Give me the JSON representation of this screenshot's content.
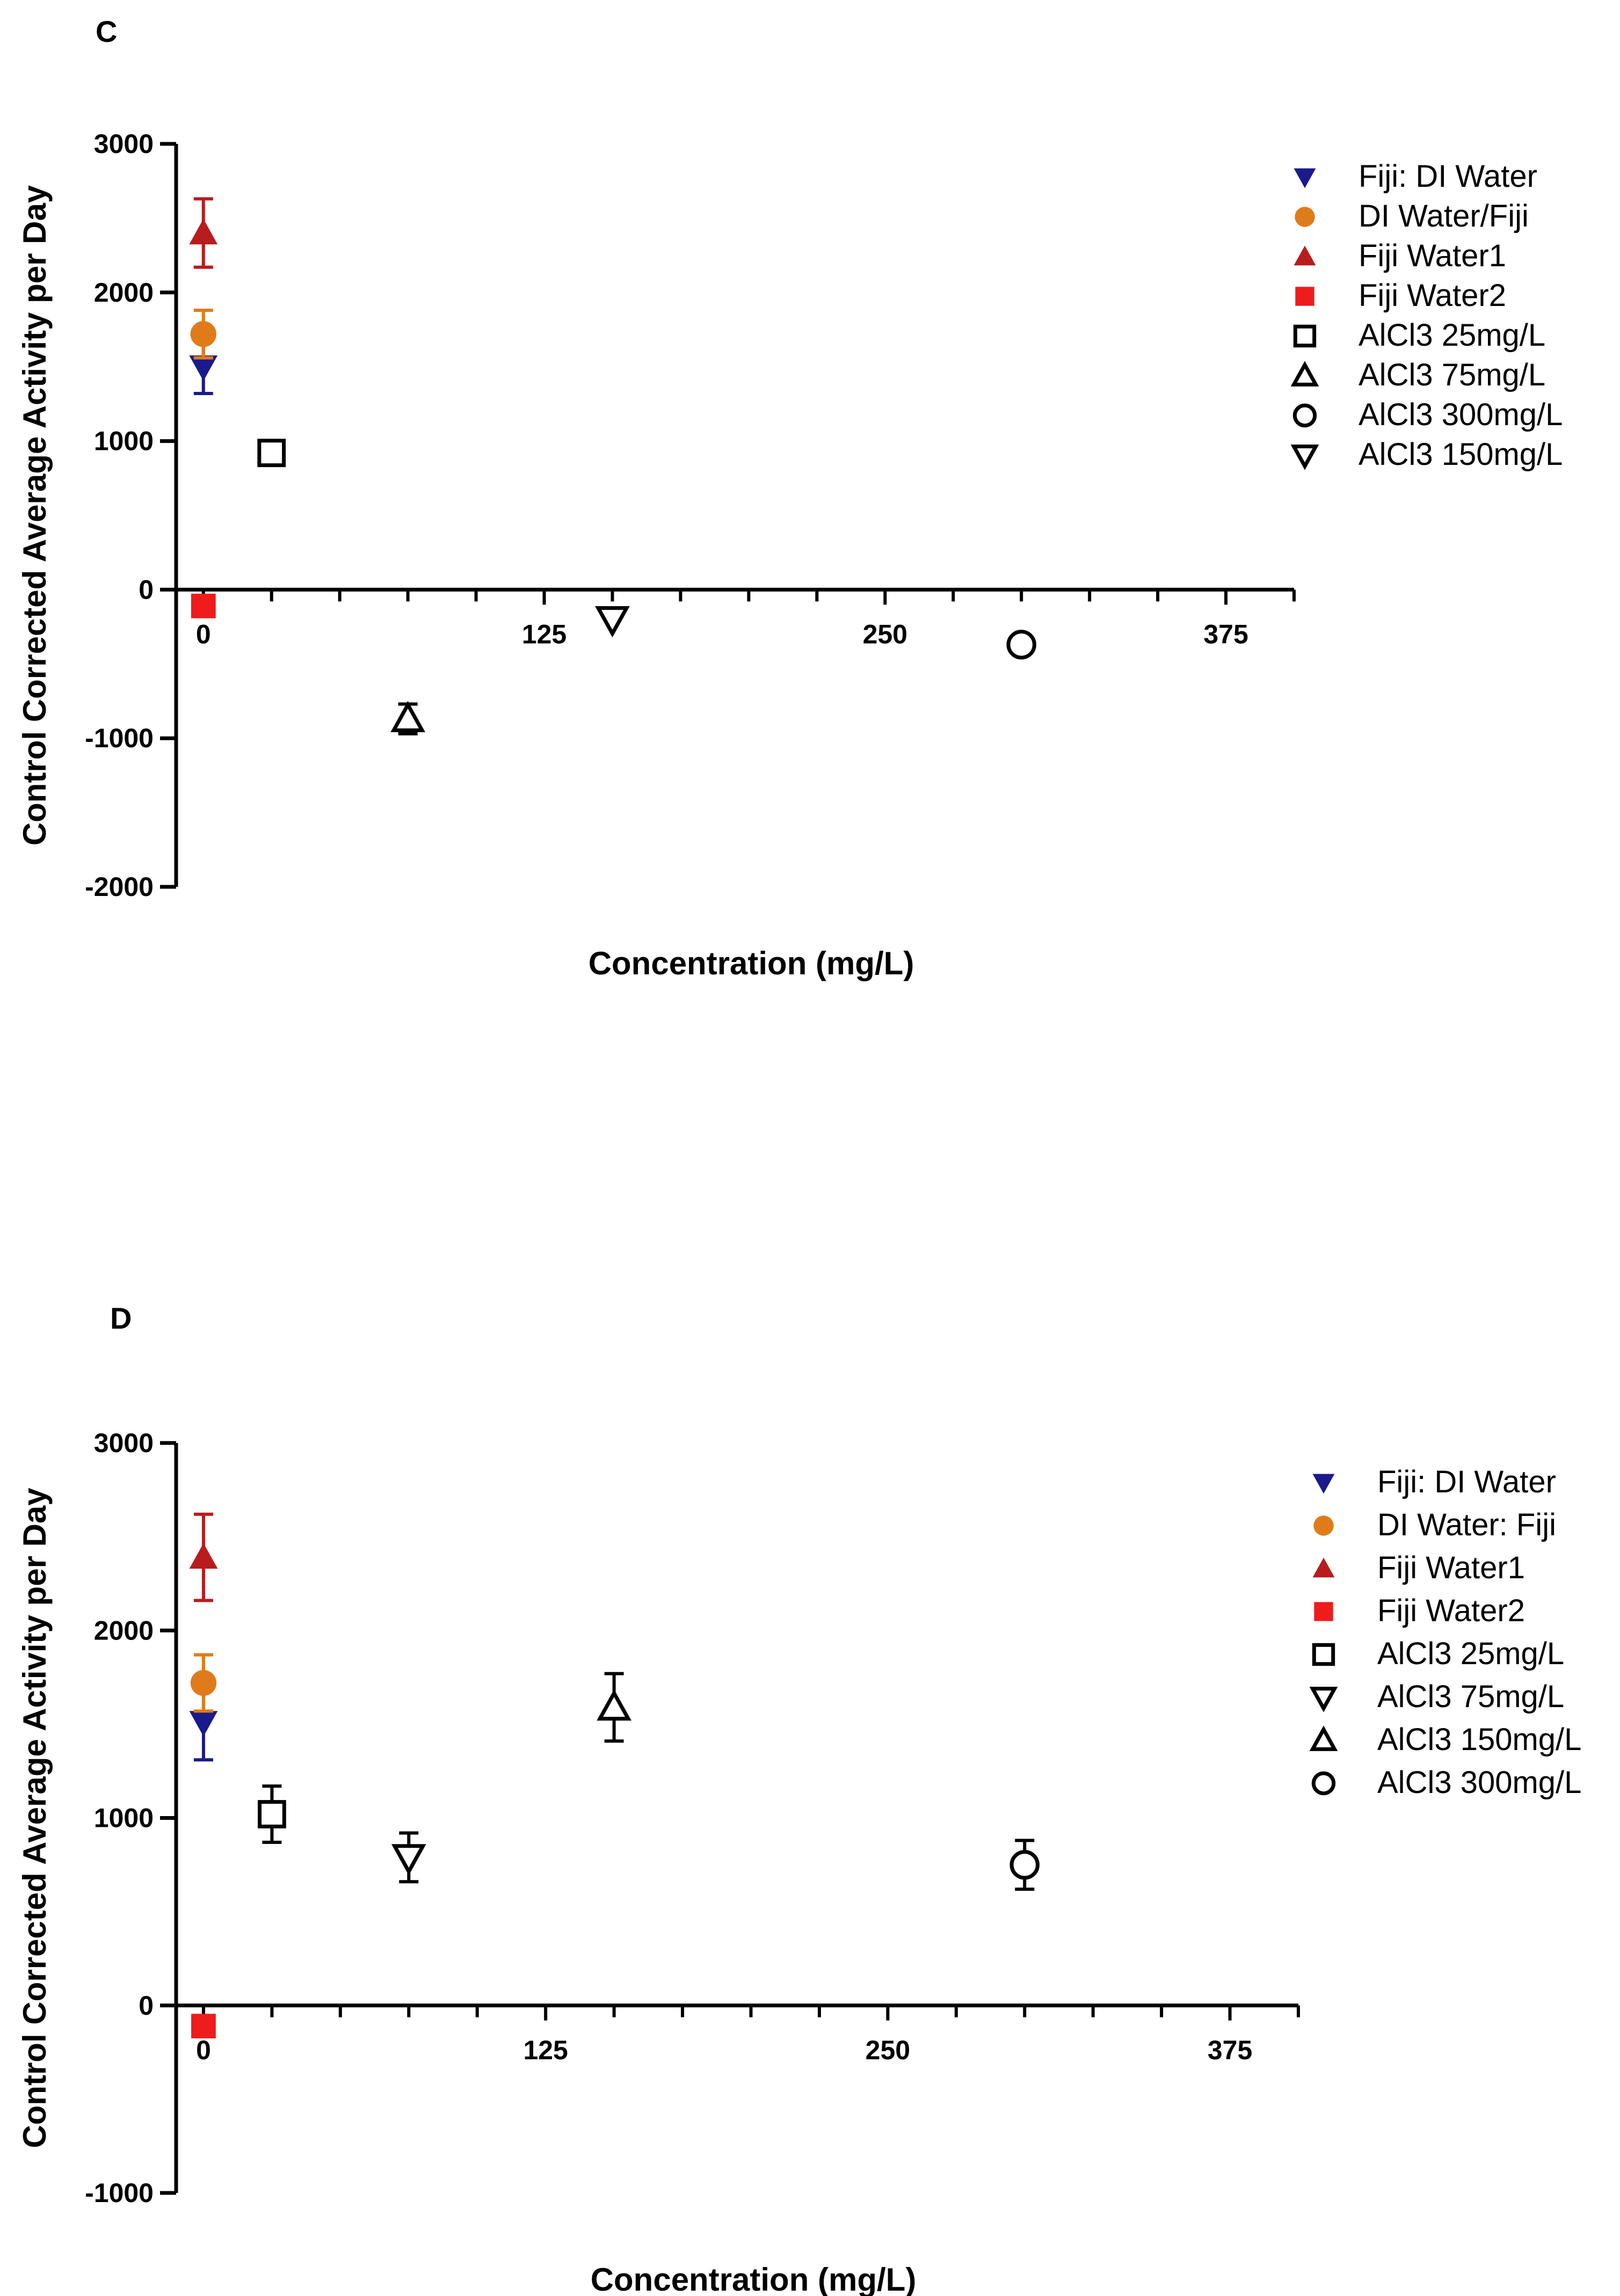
{
  "chart_data": [
    {
      "panel": "C",
      "type": "scatter",
      "xlabel": "Concentration (mg/L)",
      "ylabel": "Control Corrected Average Activity per Day",
      "xlim": [
        -10,
        400
      ],
      "ylim": [
        -2000,
        3000
      ],
      "x_ticks": [
        "0",
        "125",
        "250",
        "375"
      ],
      "y_ticks": [
        "3000",
        "2000",
        "1000",
        "0",
        "-1000",
        "-2000"
      ],
      "legend_position": "right",
      "series": [
        {
          "name": "Fiji: DI Water",
          "marker": "triangle-down",
          "filled": true,
          "color": "#1a1a8c",
          "x": 0,
          "y": 1500,
          "err": 180
        },
        {
          "name": "DI Water/Fiji",
          "marker": "circle",
          "filled": true,
          "color": "#e07b1a",
          "x": 0,
          "y": 1720,
          "err": 160
        },
        {
          "name": "Fiji Water1",
          "marker": "triangle-up",
          "filled": true,
          "color": "#b81c1c",
          "x": 0,
          "y": 2400,
          "err": 230
        },
        {
          "name": "Fiji Water2",
          "marker": "square",
          "filled": true,
          "color": "#ee1c1c",
          "x": 0,
          "y": -110,
          "err": 0
        },
        {
          "name": "AlCl3 25mg/L",
          "marker": "square",
          "filled": false,
          "color": "#000000",
          "x": 25,
          "y": 920,
          "err": 70
        },
        {
          "name": "AlCl3 75mg/L",
          "marker": "triangle-up",
          "filled": false,
          "color": "#000000",
          "x": 75,
          "y": -870,
          "err": 100
        },
        {
          "name": "AlCl3 300mg/L",
          "marker": "circle",
          "filled": false,
          "color": "#000000",
          "x": 300,
          "y": -370,
          "err": 0
        },
        {
          "name": "AlCl3 150mg/L",
          "marker": "triangle-down",
          "filled": false,
          "color": "#000000",
          "x": 150,
          "y": -200,
          "err": 0
        }
      ]
    },
    {
      "panel": "D",
      "type": "scatter",
      "xlabel": "Concentration (mg/L)",
      "ylabel": "Control Corrected Average Activity per Day",
      "xlim": [
        -10,
        400
      ],
      "ylim": [
        -1000,
        3000
      ],
      "x_ticks": [
        "0",
        "125",
        "250",
        "375"
      ],
      "y_ticks": [
        "3000",
        "2000",
        "1000",
        "0",
        "-1000"
      ],
      "legend_position": "right",
      "series": [
        {
          "name": "Fiji: DI Water",
          "marker": "triangle-down",
          "filled": true,
          "color": "#1a1a8c",
          "x": 0,
          "y": 1510,
          "err": 200
        },
        {
          "name": "DI Water: Fiji",
          "marker": "circle",
          "filled": true,
          "color": "#e07b1a",
          "x": 0,
          "y": 1720,
          "err": 150
        },
        {
          "name": "Fiji Water1",
          "marker": "triangle-up",
          "filled": true,
          "color": "#b81c1c",
          "x": 0,
          "y": 2390,
          "err": 230
        },
        {
          "name": "Fiji Water2",
          "marker": "square",
          "filled": true,
          "color": "#ee1c1c",
          "x": 0,
          "y": -110,
          "err": 0
        },
        {
          "name": "AlCl3 25mg/L",
          "marker": "square",
          "filled": false,
          "color": "#000000",
          "x": 25,
          "y": 1020,
          "err": 150
        },
        {
          "name": "AlCl3 75mg/L",
          "marker": "triangle-down",
          "filled": false,
          "color": "#000000",
          "x": 75,
          "y": 790,
          "err": 130
        },
        {
          "name": "AlCl3 150mg/L",
          "marker": "triangle-up",
          "filled": false,
          "color": "#000000",
          "x": 150,
          "y": 1590,
          "err": 180
        },
        {
          "name": "AlCl3 300mg/L",
          "marker": "circle",
          "filled": false,
          "color": "#000000",
          "x": 300,
          "y": 750,
          "err": 130
        }
      ]
    }
  ]
}
